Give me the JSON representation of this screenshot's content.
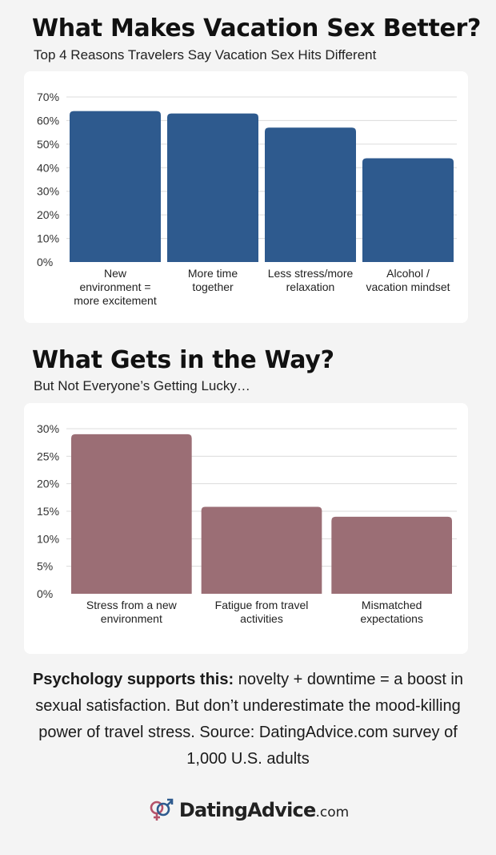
{
  "section1": {
    "title": "What Makes Vacation Sex Better?",
    "subtitle": "Top 4 Reasons Travelers Say Vacation Sex Hits Different"
  },
  "section2": {
    "title": "What Gets in the Way?",
    "subtitle": "But Not Everyone’s Getting Lucky…"
  },
  "footer": {
    "bold_lead": "Psychology supports this:",
    "text": " novelty + downtime = a boost in sexual satisfaction. But don’t underestimate the mood-killing power of travel stress. Source: DatingAdvice.com survey of 1,000 U.S. adults"
  },
  "logo": {
    "name": "DatingAdvice",
    "suffix": ".com",
    "icon": "gender-symbols-icon"
  },
  "colors": {
    "chart1_bar": "#2e5a8e",
    "chart2_bar": "#9b6e75",
    "grid": "#dcdcdc",
    "card": "#ffffff",
    "background": "#f4f4f4"
  },
  "chart_data": [
    {
      "type": "bar",
      "categories": [
        [
          "New",
          "environment =",
          "more excitement"
        ],
        [
          "More time",
          "together"
        ],
        [
          "Less stress/more",
          "relaxation"
        ],
        [
          "Alcohol /",
          "vacation mindset"
        ]
      ],
      "values": [
        64,
        63,
        57,
        44
      ],
      "ylim": [
        0,
        70
      ],
      "yticks": [
        0,
        10,
        20,
        30,
        40,
        50,
        60,
        70
      ],
      "tick_suffix": "%",
      "grid": true,
      "title": "",
      "xlabel": "",
      "ylabel": ""
    },
    {
      "type": "bar",
      "categories": [
        [
          "Stress from a new",
          "environment"
        ],
        [
          "Fatigue from travel",
          "activities"
        ],
        [
          "Mismatched",
          "expectations"
        ]
      ],
      "values": [
        29,
        15.8,
        14
      ],
      "ylim": [
        0,
        30
      ],
      "yticks": [
        0,
        5,
        10,
        15,
        20,
        25,
        30
      ],
      "tick_suffix": "%",
      "grid": true,
      "title": "",
      "xlabel": "",
      "ylabel": ""
    }
  ]
}
